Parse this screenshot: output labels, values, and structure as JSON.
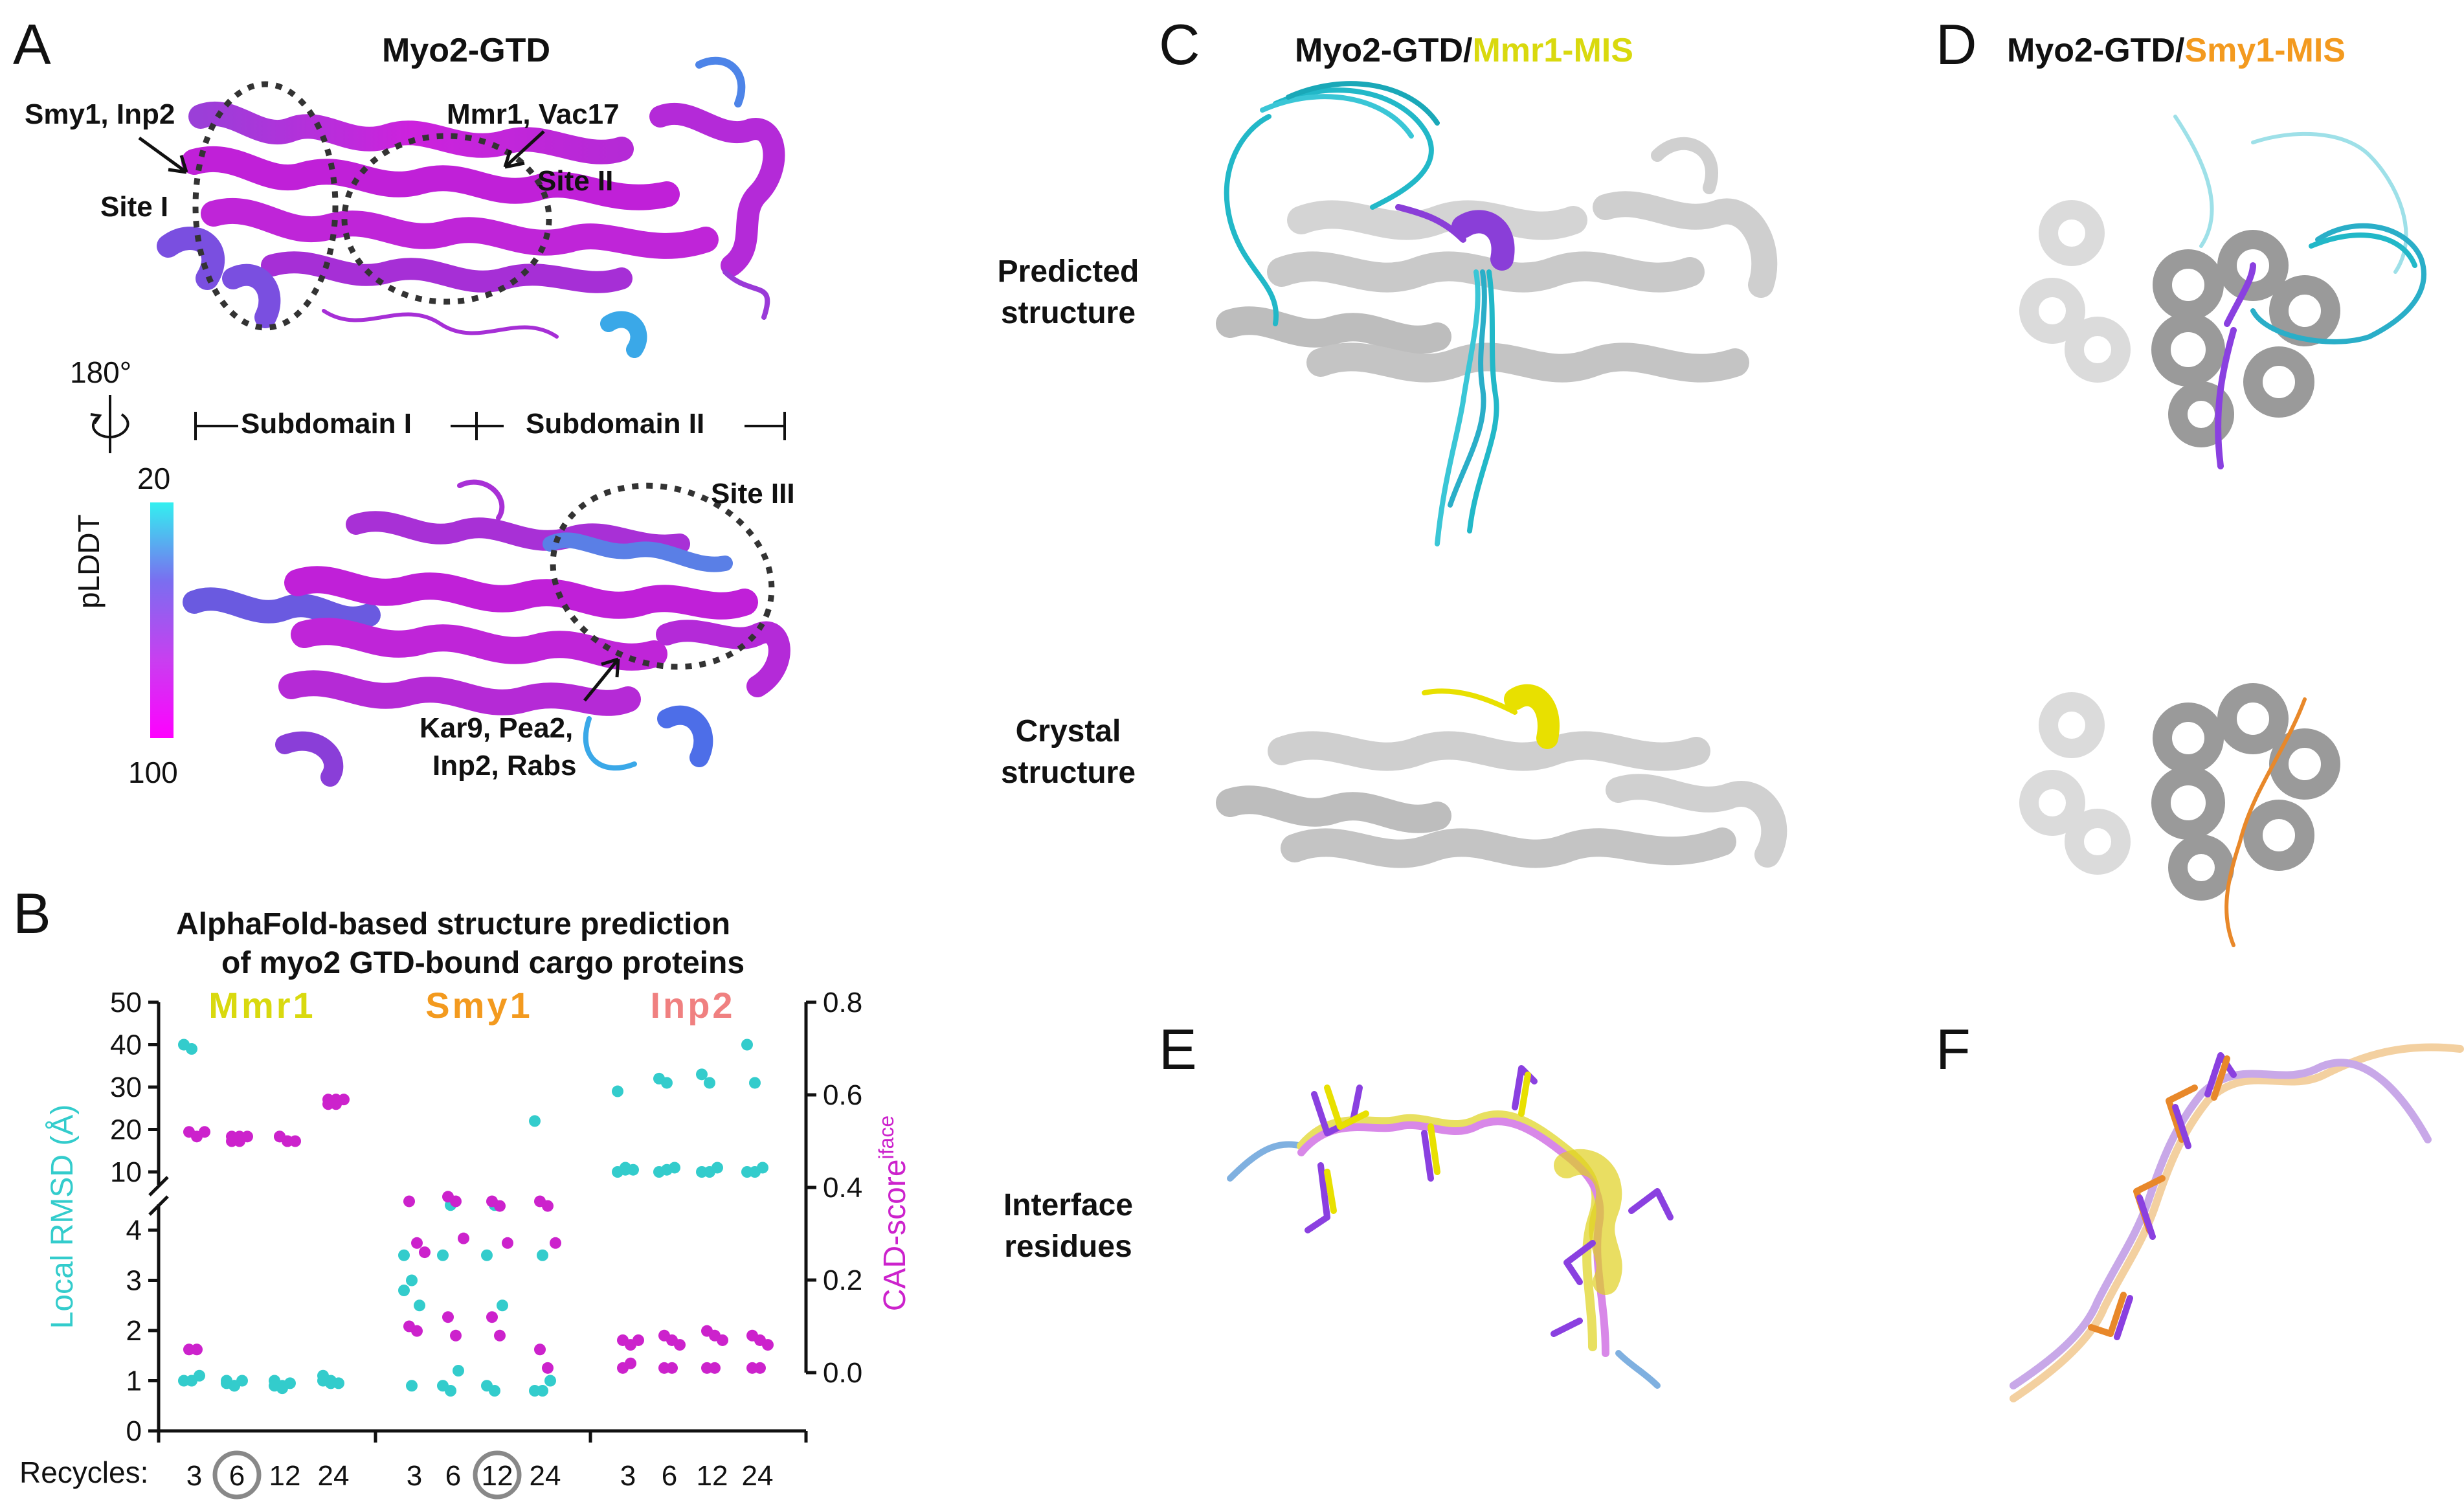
{
  "panels": {
    "a": "A",
    "b": "B",
    "c": "C",
    "d": "D",
    "e": "E",
    "f": "F"
  },
  "panel_a": {
    "title": "Myo2-GTD",
    "site1_label": "Smy1, Inp2",
    "site1": "Site I",
    "site2_label": "Mmr1, Vac17",
    "site2": "Site II",
    "site3": "Site III",
    "site3_label_1": "Kar9, Pea2,",
    "site3_label_2": "Inp2, Rabs",
    "rotation": "180°",
    "subdomain1": "Subdomain I",
    "subdomain2": "Subdomain II",
    "colorbar_label": "pLDDT",
    "colorbar_top": "20",
    "colorbar_bottom": "100",
    "colors": {
      "high_conf": "#cc22dd",
      "low_conf": "#33d8e8"
    }
  },
  "panel_c": {
    "title_prefix": "Myo2-GTD/",
    "title_ligand": "Mmr1-MIS",
    "ligand_color": "#d9d90e"
  },
  "panel_d": {
    "title_prefix": "Myo2-GTD/",
    "title_ligand": "Smy1-MIS",
    "ligand_color": "#f39a1f"
  },
  "rows": {
    "predicted_1": "Predicted",
    "predicted_2": "structure",
    "crystal_1": "Crystal",
    "crystal_2": "structure",
    "interface_1": "Interface",
    "interface_2": "residues"
  },
  "chart_data": {
    "type": "scatter",
    "title": "AlphaFold-based structure prediction of myo2 GTD-bound cargo proteins",
    "title_line1": "AlphaFold-based structure prediction",
    "title_line2": "of myo2 GTD-bound cargo proteins",
    "ylabel_left": "Local RMSD (Å)",
    "ylabel_right_main": "CAD-score",
    "ylabel_right_sup": "iface",
    "xlabel": "Recycles:",
    "groups": [
      {
        "name": "Mmr1",
        "color": "#d9d90e"
      },
      {
        "name": "Smy1",
        "color": "#f39a1f"
      },
      {
        "name": "Inp2",
        "color": "#f08080"
      }
    ],
    "recycles": [
      "3",
      "6",
      "12",
      "24"
    ],
    "highlighted": [
      {
        "group": "Mmr1",
        "recycle": "6"
      },
      {
        "group": "Smy1",
        "recycle": "12"
      }
    ],
    "left_axis": {
      "upper_ticks": [
        10,
        20,
        30,
        40,
        50
      ],
      "lower_ticks": [
        0,
        1,
        2,
        3,
        4
      ],
      "broken_between": [
        4,
        10
      ]
    },
    "right_axis": {
      "ylim": [
        0.0,
        0.8
      ],
      "ticks": [
        "0.0",
        "0.2",
        "0.4",
        "0.6",
        "0.8"
      ]
    },
    "series": [
      {
        "name": "Local RMSD (Å)",
        "color": "#33cccc",
        "axis": "left",
        "points": [
          {
            "g": 0,
            "r": 0,
            "y": [
              40,
              39,
              1.1,
              1.0,
              1.0
            ]
          },
          {
            "g": 0,
            "r": 1,
            "y": [
              1.0,
              0.9,
              1.0,
              0.95,
              0.9
            ]
          },
          {
            "g": 0,
            "r": 2,
            "y": [
              1.0,
              0.9,
              0.95,
              0.9,
              0.85
            ]
          },
          {
            "g": 0,
            "r": 3,
            "y": [
              1.1,
              1.0,
              0.95,
              1.0,
              0.95
            ]
          },
          {
            "g": 1,
            "r": 0,
            "y": [
              3.5,
              3.0,
              2.5,
              2.8,
              0.9
            ]
          },
          {
            "g": 1,
            "r": 1,
            "y": [
              3.5,
              4.5,
              1.2,
              0.9,
              0.8
            ]
          },
          {
            "g": 1,
            "r": 2,
            "y": [
              3.5,
              4.5,
              2.5,
              0.9,
              0.8
            ]
          },
          {
            "g": 1,
            "r": 3,
            "y": [
              22,
              3.5,
              1.0,
              0.8,
              0.8
            ]
          },
          {
            "g": 2,
            "r": 0,
            "y": [
              29,
              11,
              10.5,
              10,
              10.5
            ]
          },
          {
            "g": 2,
            "r": 1,
            "y": [
              32,
              31,
              11,
              10,
              10.5
            ]
          },
          {
            "g": 2,
            "r": 2,
            "y": [
              33,
              31,
              11,
              10,
              10
            ]
          },
          {
            "g": 2,
            "r": 3,
            "y": [
              40,
              31,
              11,
              10,
              10
            ]
          }
        ]
      },
      {
        "name": "CAD-score iface",
        "color": "#cc22cc",
        "axis": "right",
        "points": [
          {
            "g": 0,
            "r": 0,
            "y": [
              0.52,
              0.51,
              0.52,
              0.05,
              0.05
            ]
          },
          {
            "g": 0,
            "r": 1,
            "y": [
              0.51,
              0.5,
              0.51,
              0.5,
              0.51
            ]
          },
          {
            "g": 0,
            "r": 2,
            "y": [
              0.51,
              0.5,
              0.5,
              0.51,
              0.5
            ]
          },
          {
            "g": 0,
            "r": 3,
            "y": [
              0.59,
              0.58,
              0.59,
              0.58,
              0.59
            ]
          },
          {
            "g": 1,
            "r": 0,
            "y": [
              0.37,
              0.28,
              0.26,
              0.1,
              0.09
            ]
          },
          {
            "g": 1,
            "r": 1,
            "y": [
              0.38,
              0.37,
              0.29,
              0.12,
              0.08
            ]
          },
          {
            "g": 1,
            "r": 2,
            "y": [
              0.37,
              0.36,
              0.28,
              0.12,
              0.08
            ]
          },
          {
            "g": 1,
            "r": 3,
            "y": [
              0.37,
              0.36,
              0.28,
              0.05,
              0.01
            ]
          },
          {
            "g": 2,
            "r": 0,
            "y": [
              0.07,
              0.06,
              0.07,
              0.01,
              0.02
            ]
          },
          {
            "g": 2,
            "r": 1,
            "y": [
              0.08,
              0.07,
              0.06,
              0.01,
              0.01
            ]
          },
          {
            "g": 2,
            "r": 2,
            "y": [
              0.09,
              0.08,
              0.07,
              0.01,
              0.01
            ]
          },
          {
            "g": 2,
            "r": 3,
            "y": [
              0.08,
              0.07,
              0.06,
              0.01,
              0.01
            ]
          }
        ]
      }
    ]
  }
}
